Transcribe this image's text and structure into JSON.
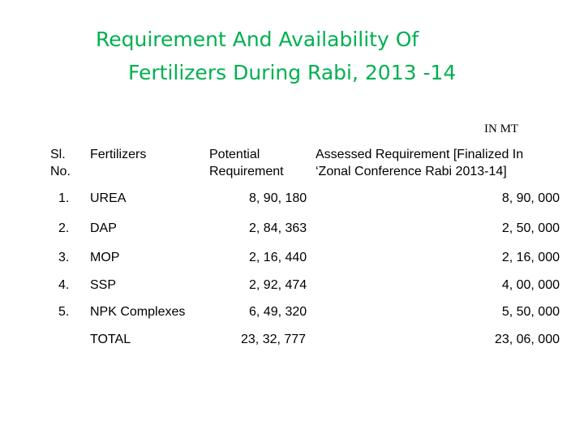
{
  "title": {
    "line1": "Requirement And Availability Of",
    "line2": "Fertilizers During Rabi, 2013 -14"
  },
  "unit_label": "IN MT",
  "table": {
    "headers": {
      "sl_line1": "Sl.",
      "sl_line2": "No.",
      "fertilizers": "Fertilizers",
      "potential_line1": "Potential",
      "potential_line2": "Requirement",
      "assessed_line1": "Assessed Requirement [Finalized In",
      "assessed_line2": "‘Zonal Conference Rabi 2013-14]"
    },
    "rows": [
      {
        "sl": "1.",
        "fertilizer": "UREA",
        "potential": "8, 90, 180",
        "assessed": "8, 90, 000"
      },
      {
        "sl": "2.",
        "fertilizer": "DAP",
        "potential": "2, 84, 363",
        "assessed": "2, 50, 000"
      },
      {
        "sl": "3.",
        "fertilizer": "MOP",
        "potential": "2, 16, 440",
        "assessed": "2, 16, 000"
      },
      {
        "sl": "4.",
        "fertilizer": "SSP",
        "potential": "2, 92, 474",
        "assessed": "4, 00, 000"
      },
      {
        "sl": "5.",
        "fertilizer": "NPK Complexes",
        "potential": "6, 49, 320",
        "assessed": "5, 50, 000"
      }
    ],
    "total": {
      "label": "TOTAL",
      "potential": "23, 32, 777",
      "assessed": "23, 06, 000"
    }
  }
}
